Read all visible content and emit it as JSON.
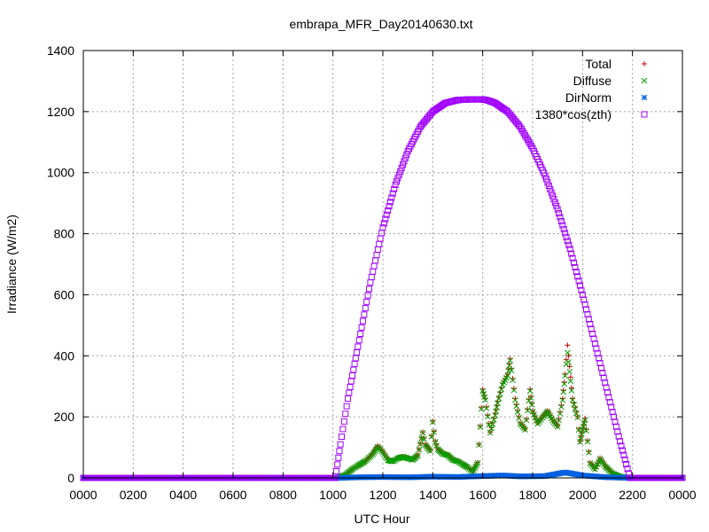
{
  "chart_data": {
    "type": "scatter",
    "title": "embrapa_MFR_Day20140630.txt",
    "xlabel": "UTC Hour",
    "ylabel": "Irradiance (W/m2)",
    "xlim": [
      0,
      24
    ],
    "ylim": [
      0,
      1400
    ],
    "grid": true,
    "legend_position": "top-right",
    "x_ticks": [
      {
        "value": 0,
        "label": "0000"
      },
      {
        "value": 2,
        "label": "0200"
      },
      {
        "value": 4,
        "label": "0400"
      },
      {
        "value": 6,
        "label": "0600"
      },
      {
        "value": 8,
        "label": "0800"
      },
      {
        "value": 10,
        "label": "1000"
      },
      {
        "value": 12,
        "label": "1200"
      },
      {
        "value": 14,
        "label": "1400"
      },
      {
        "value": 16,
        "label": "1600"
      },
      {
        "value": 18,
        "label": "1800"
      },
      {
        "value": 20,
        "label": "2000"
      },
      {
        "value": 22,
        "label": "2200"
      },
      {
        "value": 24,
        "label": "0000"
      }
    ],
    "y_ticks": [
      0,
      200,
      400,
      600,
      800,
      1000,
      1200,
      1400
    ],
    "series": [
      {
        "name": "Total",
        "color": "#cc0000",
        "marker": "plus",
        "points": [
          [
            0,
            0
          ],
          [
            10.2,
            0
          ],
          [
            10.5,
            10
          ],
          [
            10.8,
            30
          ],
          [
            11,
            40
          ],
          [
            11.3,
            55
          ],
          [
            11.6,
            80
          ],
          [
            11.8,
            105
          ],
          [
            12,
            85
          ],
          [
            12.2,
            60
          ],
          [
            12.4,
            55
          ],
          [
            12.6,
            65
          ],
          [
            12.8,
            70
          ],
          [
            13,
            65
          ],
          [
            13.2,
            60
          ],
          [
            13.4,
            75
          ],
          [
            13.6,
            150
          ],
          [
            13.7,
            110
          ],
          [
            13.9,
            90
          ],
          [
            14,
            185
          ],
          [
            14.1,
            120
          ],
          [
            14.2,
            95
          ],
          [
            14.4,
            80
          ],
          [
            14.6,
            75
          ],
          [
            14.8,
            60
          ],
          [
            15,
            55
          ],
          [
            15.2,
            45
          ],
          [
            15.4,
            35
          ],
          [
            15.6,
            20
          ],
          [
            15.8,
            50
          ],
          [
            16,
            290
          ],
          [
            16.1,
            260
          ],
          [
            16.3,
            150
          ],
          [
            16.5,
            210
          ],
          [
            16.6,
            250
          ],
          [
            16.8,
            310
          ],
          [
            17,
            340
          ],
          [
            17.1,
            390
          ],
          [
            17.3,
            260
          ],
          [
            17.5,
            180
          ],
          [
            17.7,
            160
          ],
          [
            17.9,
            290
          ],
          [
            18,
            220
          ],
          [
            18.2,
            180
          ],
          [
            18.4,
            200
          ],
          [
            18.6,
            220
          ],
          [
            18.8,
            190
          ],
          [
            19,
            170
          ],
          [
            19.2,
            260
          ],
          [
            19.3,
            340
          ],
          [
            19.4,
            435
          ],
          [
            19.6,
            260
          ],
          [
            19.8,
            200
          ],
          [
            19.9,
            120
          ],
          [
            20,
            160
          ],
          [
            20.1,
            195
          ],
          [
            20.3,
            50
          ],
          [
            20.5,
            30
          ],
          [
            20.7,
            65
          ],
          [
            20.9,
            40
          ],
          [
            21.2,
            15
          ],
          [
            21.5,
            5
          ],
          [
            22,
            0
          ],
          [
            24,
            0
          ]
        ]
      },
      {
        "name": "Diffuse",
        "color": "#00a000",
        "marker": "cross",
        "points": [
          [
            0,
            0
          ],
          [
            10.2,
            0
          ],
          [
            10.5,
            10
          ],
          [
            10.8,
            30
          ],
          [
            11,
            40
          ],
          [
            11.3,
            55
          ],
          [
            11.6,
            78
          ],
          [
            11.8,
            102
          ],
          [
            12,
            83
          ],
          [
            12.2,
            58
          ],
          [
            12.4,
            54
          ],
          [
            12.6,
            64
          ],
          [
            12.8,
            69
          ],
          [
            13,
            64
          ],
          [
            13.2,
            59
          ],
          [
            13.4,
            74
          ],
          [
            13.6,
            148
          ],
          [
            13.7,
            108
          ],
          [
            13.9,
            88
          ],
          [
            14,
            183
          ],
          [
            14.1,
            118
          ],
          [
            14.2,
            94
          ],
          [
            14.4,
            79
          ],
          [
            14.6,
            74
          ],
          [
            14.8,
            59
          ],
          [
            15,
            54
          ],
          [
            15.2,
            44
          ],
          [
            15.4,
            34
          ],
          [
            15.6,
            19
          ],
          [
            15.8,
            49
          ],
          [
            16,
            285
          ],
          [
            16.1,
            255
          ],
          [
            16.3,
            148
          ],
          [
            16.5,
            205
          ],
          [
            16.6,
            245
          ],
          [
            16.8,
            305
          ],
          [
            17,
            335
          ],
          [
            17.1,
            385
          ],
          [
            17.3,
            255
          ],
          [
            17.5,
            178
          ],
          [
            17.7,
            158
          ],
          [
            17.9,
            285
          ],
          [
            18,
            218
          ],
          [
            18.2,
            178
          ],
          [
            18.4,
            198
          ],
          [
            18.6,
            218
          ],
          [
            18.8,
            188
          ],
          [
            19,
            168
          ],
          [
            19.2,
            255
          ],
          [
            19.3,
            335
          ],
          [
            19.4,
            410
          ],
          [
            19.6,
            255
          ],
          [
            19.8,
            198
          ],
          [
            19.9,
            118
          ],
          [
            20,
            158
          ],
          [
            20.1,
            190
          ],
          [
            20.3,
            48
          ],
          [
            20.5,
            28
          ],
          [
            20.7,
            63
          ],
          [
            20.9,
            38
          ],
          [
            21.2,
            14
          ],
          [
            21.5,
            4
          ],
          [
            22,
            0
          ],
          [
            24,
            0
          ]
        ]
      },
      {
        "name": "DirNorm",
        "color": "#0060e0",
        "marker": "star",
        "points": [
          [
            0,
            0
          ],
          [
            10.2,
            0
          ],
          [
            11,
            2
          ],
          [
            12,
            3
          ],
          [
            13,
            2
          ],
          [
            14,
            4
          ],
          [
            15,
            3
          ],
          [
            16,
            6
          ],
          [
            16.8,
            8
          ],
          [
            17.5,
            5
          ],
          [
            18.5,
            6
          ],
          [
            19.3,
            18
          ],
          [
            20,
            8
          ],
          [
            21,
            2
          ],
          [
            22,
            0
          ],
          [
            24,
            0
          ]
        ]
      },
      {
        "name": "1380*cos(zth)",
        "color": "#a000ff",
        "marker": "square",
        "points": [
          [
            0,
            0
          ],
          [
            10.1,
            0
          ],
          [
            10.3,
            110
          ],
          [
            10.6,
            260
          ],
          [
            11,
            430
          ],
          [
            11.5,
            640
          ],
          [
            12,
            820
          ],
          [
            12.5,
            960
          ],
          [
            13,
            1070
          ],
          [
            13.5,
            1150
          ],
          [
            14,
            1200
          ],
          [
            14.5,
            1228
          ],
          [
            15,
            1238
          ],
          [
            15.5,
            1240
          ],
          [
            16,
            1240
          ],
          [
            16.2,
            1237
          ],
          [
            16.5,
            1228
          ],
          [
            17,
            1200
          ],
          [
            17.5,
            1150
          ],
          [
            18,
            1080
          ],
          [
            18.5,
            990
          ],
          [
            19,
            880
          ],
          [
            19.5,
            750
          ],
          [
            20,
            600
          ],
          [
            20.5,
            440
          ],
          [
            21,
            280
          ],
          [
            21.5,
            120
          ],
          [
            21.9,
            0
          ],
          [
            24,
            0
          ]
        ]
      }
    ]
  }
}
